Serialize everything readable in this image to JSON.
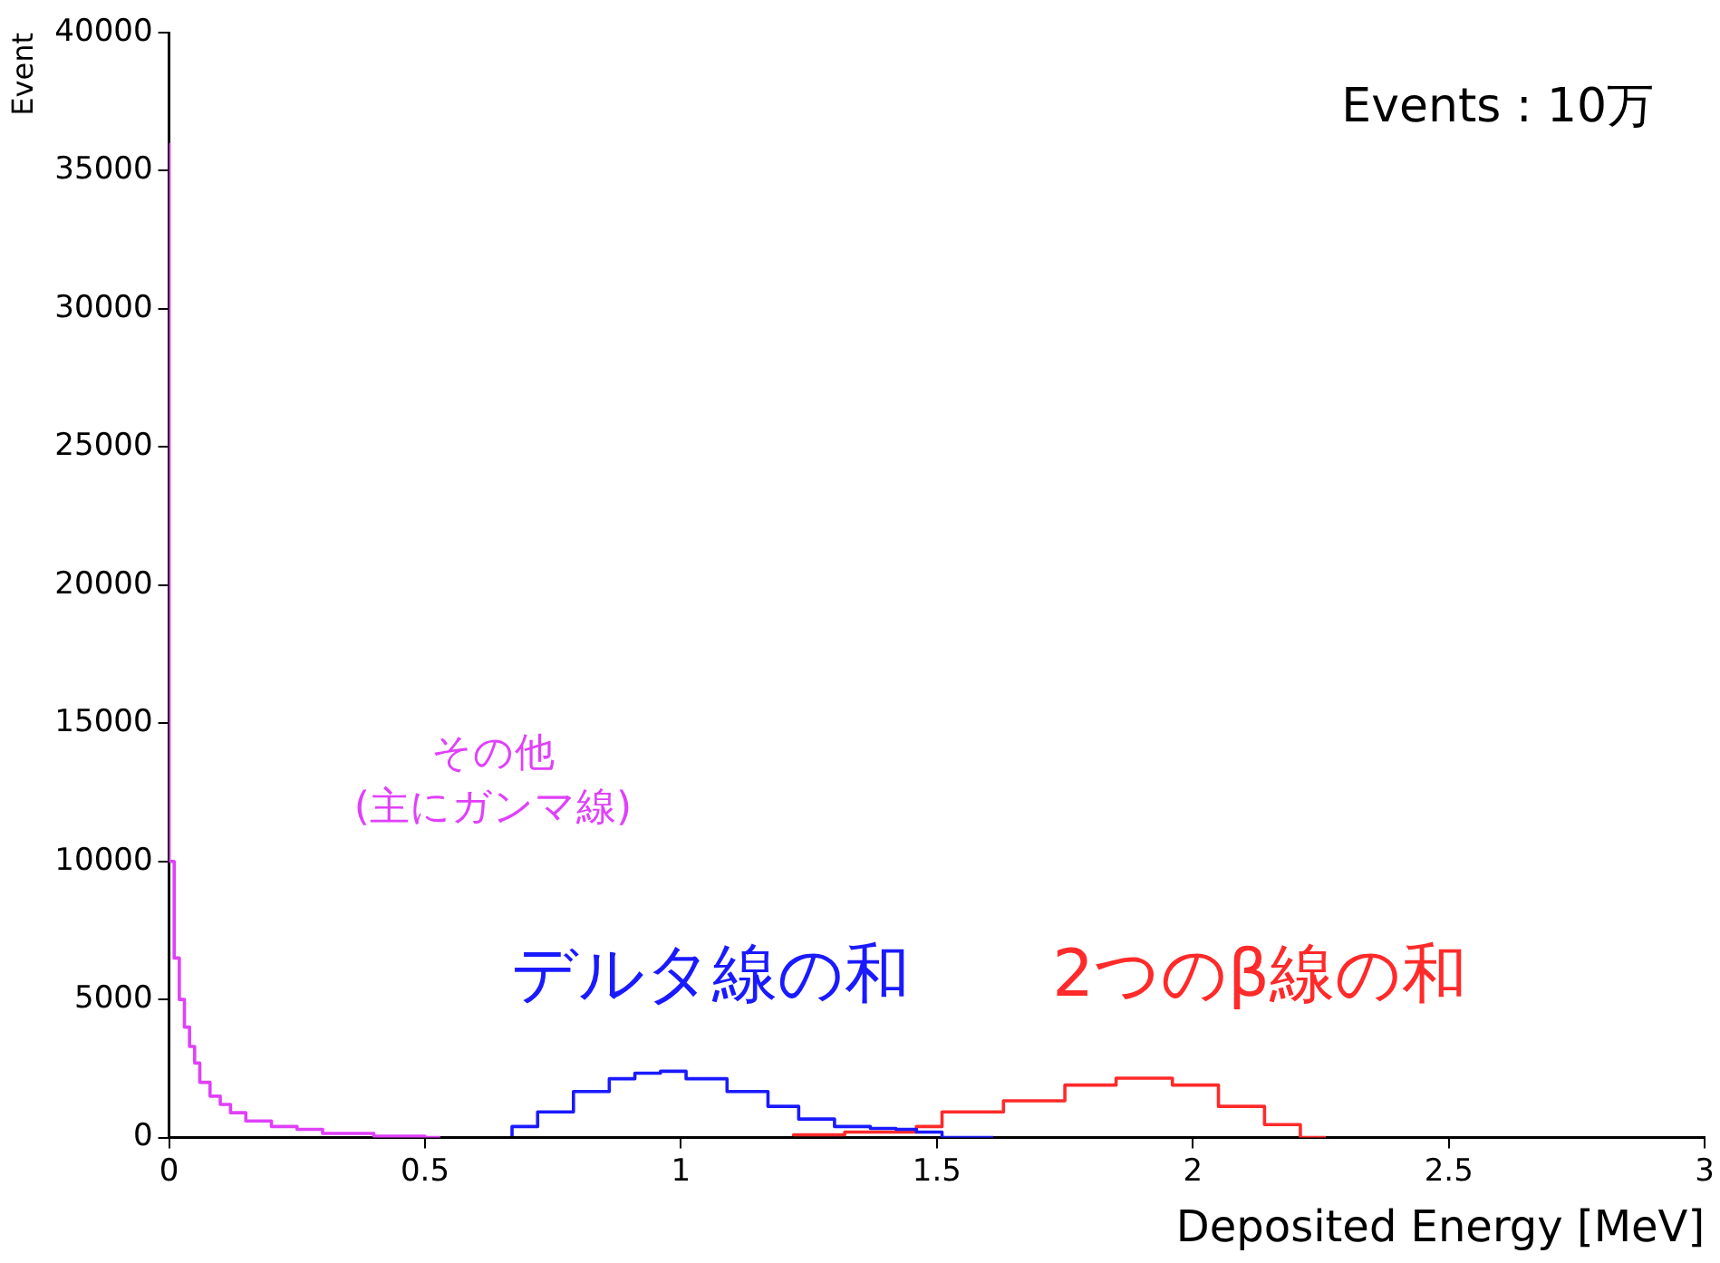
{
  "chart_data": {
    "type": "step",
    "xlabel": "Deposited Energy [MeV]",
    "ylabel": "Event",
    "xlim": [
      0,
      3
    ],
    "xticks": [
      0,
      0.5,
      1,
      1.5,
      2,
      2.5,
      3
    ],
    "ylim": [
      0,
      40000
    ],
    "yticks": [
      0,
      5000,
      10000,
      15000,
      20000,
      25000,
      30000,
      35000,
      40000
    ],
    "grid": false,
    "legend": false,
    "marker": "none",
    "line_style": "solid",
    "annotations": [
      "Events : 10万"
    ],
    "series": [
      {
        "name": "その他\n(主にガンマ線)",
        "color": "#e040fb",
        "x": [
          0,
          0.01,
          0.02,
          0.03,
          0.04,
          0.05,
          0.06,
          0.08,
          0.1,
          0.12,
          0.15,
          0.2,
          0.25,
          0.3,
          0.4,
          0.5,
          0.53
        ],
        "values": [
          36000,
          10000,
          6500,
          5000,
          4000,
          3300,
          2700,
          2000,
          1500,
          1200,
          900,
          600,
          400,
          300,
          150,
          50,
          0
        ]
      },
      {
        "name": "デルタ線の和",
        "color": "#1a1aff",
        "x": [
          0.67,
          0.72,
          0.79,
          0.86,
          0.91,
          0.96,
          1.01,
          1.09,
          1.17,
          1.23,
          1.3,
          1.37,
          1.42,
          1.46,
          1.51,
          1.61
        ],
        "values": [
          50,
          400,
          930,
          1670,
          2130,
          2330,
          2400,
          2130,
          1670,
          1130,
          670,
          400,
          330,
          300,
          200,
          0
        ]
      },
      {
        "name": "2つのβ線の和",
        "color": "#ff2a2a",
        "x": [
          1.22,
          1.32,
          1.46,
          1.51,
          1.63,
          1.75,
          1.85,
          1.96,
          2.05,
          2.14,
          2.21,
          2.26
        ],
        "values": [
          50,
          100,
          200,
          400,
          930,
          1330,
          1900,
          2150,
          1900,
          1130,
          470,
          0
        ]
      }
    ]
  }
}
